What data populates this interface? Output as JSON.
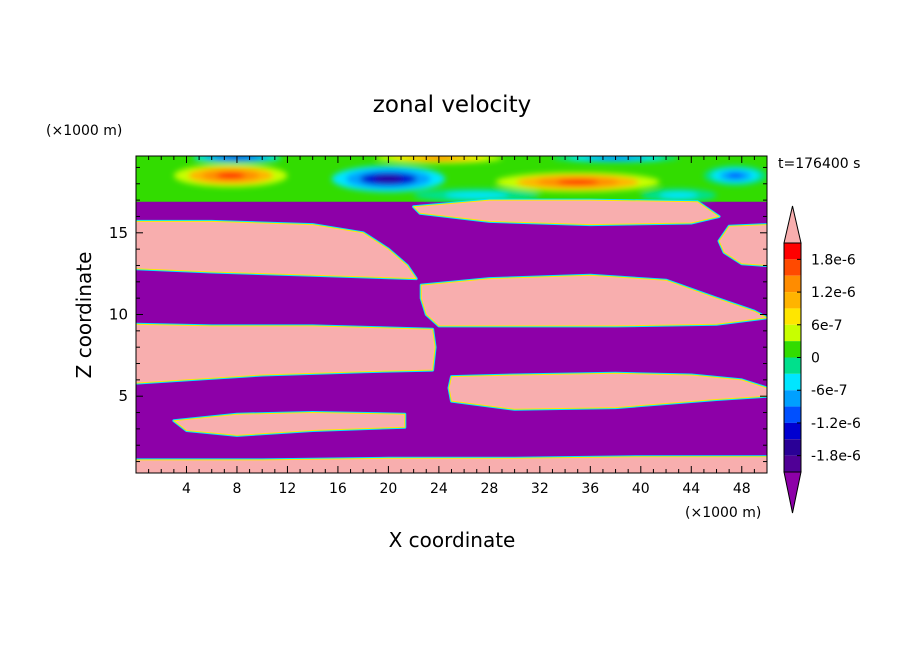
{
  "chart_data": {
    "type": "heatmap",
    "title": "zonal velocity",
    "xlabel": "X coordinate",
    "ylabel": "Z coordinate",
    "x_unit": "(×1000 m)",
    "y_unit": "(×1000 m)",
    "time_label": "t=176400 s",
    "xlim": [
      0,
      50
    ],
    "ylim": [
      0.3,
      19.7
    ],
    "x_ticks": [
      4,
      8,
      12,
      16,
      20,
      24,
      28,
      32,
      36,
      40,
      44,
      48
    ],
    "y_ticks": [
      5,
      10,
      15
    ],
    "background_color": "#8d00a8",
    "colorbar": {
      "tick_labels": [
        "1.8e-6",
        "1.2e-6",
        "6e-7",
        "0",
        "-6e-7",
        "-1.2e-6",
        "-1.8e-6"
      ],
      "tick_values": [
        1.8e-06,
        1.2e-06,
        6e-07,
        0,
        -6e-07,
        -1.2e-06,
        -1.8e-06
      ],
      "levels": [
        2.1e-06,
        1.8e-06,
        1.5e-06,
        1.2e-06,
        9e-07,
        6e-07,
        3e-07,
        0,
        -3e-07,
        -6e-07,
        -9e-07,
        -1.2e-06,
        -1.5e-06,
        -1.8e-06,
        -2.1e-06
      ],
      "colors": [
        "#ff0000",
        "#ff4a00",
        "#ff8c00",
        "#ffb400",
        "#ffe600",
        "#c8ff00",
        "#32dc00",
        "#00e08c",
        "#00e6ff",
        "#00a0ff",
        "#0050ff",
        "#0000d0",
        "#2a0096",
        "#500096"
      ],
      "over_color": "#f8aeae",
      "under_color": "#8d00a8"
    },
    "regions": [
      {
        "value": "over",
        "polygon": [
          [
            0,
            15.7
          ],
          [
            6,
            15.7
          ],
          [
            14,
            15.5
          ],
          [
            18,
            15
          ],
          [
            20,
            14
          ],
          [
            21.5,
            13
          ],
          [
            22.2,
            12.2
          ],
          [
            14,
            12.4
          ],
          [
            6,
            12.6
          ],
          [
            0,
            12.8
          ]
        ]
      },
      {
        "value": "over",
        "polygon": [
          [
            22.6,
            11.8
          ],
          [
            28,
            12.2
          ],
          [
            36,
            12.4
          ],
          [
            42,
            12.1
          ],
          [
            46,
            11
          ],
          [
            49,
            10.2
          ],
          [
            50,
            9.8
          ],
          [
            46,
            9.4
          ],
          [
            38,
            9.3
          ],
          [
            30,
            9.3
          ],
          [
            24,
            9.3
          ],
          [
            23,
            10
          ],
          [
            22.6,
            11
          ]
        ]
      },
      {
        "value": "over",
        "polygon": [
          [
            0,
            9.4
          ],
          [
            6,
            9.3
          ],
          [
            14,
            9.3
          ],
          [
            19,
            9.2
          ],
          [
            23.5,
            9.1
          ],
          [
            23.7,
            8
          ],
          [
            23.5,
            6.6
          ],
          [
            18,
            6.5
          ],
          [
            10,
            6.3
          ],
          [
            4,
            6
          ],
          [
            0,
            5.8
          ]
        ]
      },
      {
        "value": "over",
        "polygon": [
          [
            25,
            6.2
          ],
          [
            30,
            6.3
          ],
          [
            38,
            6.4
          ],
          [
            44,
            6.3
          ],
          [
            48,
            6
          ],
          [
            50,
            5.5
          ],
          [
            50,
            5
          ],
          [
            46,
            4.8
          ],
          [
            38,
            4.3
          ],
          [
            30,
            4.2
          ],
          [
            25,
            4.7
          ],
          [
            24.8,
            5.5
          ]
        ]
      },
      {
        "value": "over",
        "polygon": [
          [
            3,
            3.5
          ],
          [
            8,
            3.9
          ],
          [
            14,
            4
          ],
          [
            21.3,
            3.9
          ],
          [
            21.3,
            3.1
          ],
          [
            14,
            2.9
          ],
          [
            8,
            2.6
          ],
          [
            4,
            2.9
          ]
        ]
      },
      {
        "value": "over",
        "polygon": [
          [
            22,
            16.6
          ],
          [
            28,
            17
          ],
          [
            36,
            17
          ],
          [
            44.5,
            16.9
          ],
          [
            46.2,
            16
          ],
          [
            44,
            15.6
          ],
          [
            36,
            15.5
          ],
          [
            28,
            15.7
          ],
          [
            22.5,
            16.2
          ]
        ]
      },
      {
        "value": "over",
        "polygon": [
          [
            46.2,
            14.5
          ],
          [
            47,
            15.4
          ],
          [
            50,
            15.5
          ],
          [
            50,
            13
          ],
          [
            48,
            13.1
          ],
          [
            46.6,
            13.8
          ]
        ]
      },
      {
        "value": "over",
        "polygon": [
          [
            0,
            0.3
          ],
          [
            50,
            0.3
          ],
          [
            50,
            1.3
          ],
          [
            40,
            1.3
          ],
          [
            30,
            1.2
          ],
          [
            20,
            1.2
          ],
          [
            10,
            1.1
          ],
          [
            0,
            1.1
          ]
        ]
      }
    ],
    "top_band": {
      "z_range": [
        16.9,
        19.7
      ],
      "features": [
        {
          "x": 7.5,
          "z": 18.5,
          "rx": 4.5,
          "rz": 0.7,
          "value": 1.8e-06
        },
        {
          "x": 20,
          "z": 18.3,
          "rx": 4.5,
          "rz": 0.8,
          "value": -1.8e-06
        },
        {
          "x": 35,
          "z": 18.1,
          "rx": 6.5,
          "rz": 0.6,
          "value": 1.8e-06
        },
        {
          "x": 47.5,
          "z": 18.5,
          "rx": 2.5,
          "rz": 0.6,
          "value": -1.2e-06
        },
        {
          "x": 8,
          "z": 19.6,
          "rx": 3.5,
          "rz": 0.3,
          "value": -1.5e-06
        },
        {
          "x": 24,
          "z": 19.6,
          "rx": 5,
          "rz": 0.35,
          "value": 1.5e-06
        },
        {
          "x": 38,
          "z": 19.6,
          "rx": 5,
          "rz": 0.3,
          "value": -1.2e-06
        },
        {
          "x": 27,
          "z": 17.3,
          "rx": 5,
          "rz": 0.4,
          "value": -6e-07
        },
        {
          "x": 43,
          "z": 17.3,
          "rx": 3,
          "rz": 0.4,
          "value": -6e-07
        }
      ]
    }
  }
}
